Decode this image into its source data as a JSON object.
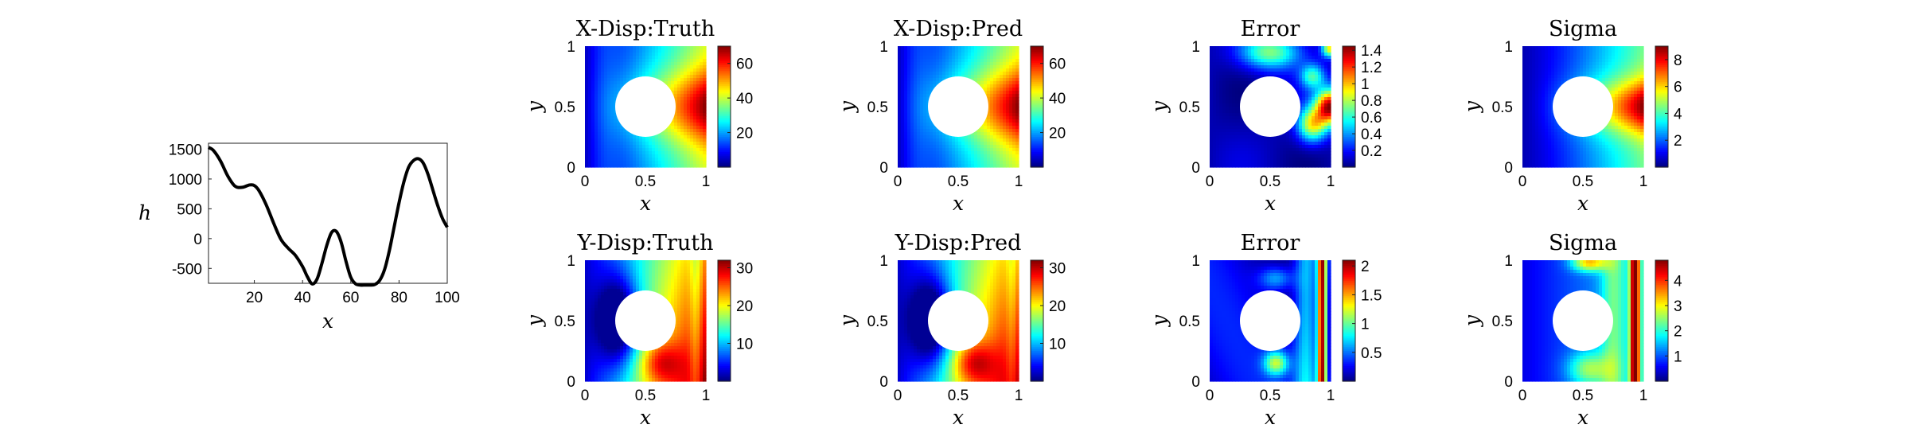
{
  "chart_data": [
    {
      "type": "line",
      "xlabel": "x",
      "ylabel": "h",
      "xlim": [
        1,
        100
      ],
      "ylim": [
        -750,
        1600
      ],
      "xticks": [
        "20",
        "40",
        "60",
        "80",
        "100"
      ],
      "yticks": [
        "-500",
        "0",
        "500",
        "1000",
        "1500"
      ],
      "series": [
        {
          "x": [
            1,
            3,
            6,
            9,
            12,
            15,
            18,
            20,
            22,
            25,
            28,
            31,
            34,
            37,
            40,
            42,
            44,
            46,
            48,
            50,
            52,
            54,
            56,
            58,
            60,
            62,
            64,
            66,
            68,
            70,
            72,
            74,
            76,
            78,
            80,
            82,
            84,
            86,
            88,
            90,
            92,
            94,
            96,
            98,
            100
          ],
          "y": [
            1530,
            1480,
            1300,
            1050,
            880,
            860,
            900,
            890,
            800,
            560,
            260,
            -10,
            -160,
            -280,
            -470,
            -640,
            -760,
            -680,
            -420,
            -120,
            100,
            120,
            -60,
            -380,
            -650,
            -760,
            -780,
            -780,
            -780,
            -770,
            -700,
            -520,
            -200,
            200,
            600,
            950,
            1200,
            1310,
            1340,
            1270,
            1080,
            820,
            560,
            340,
            190
          ]
        }
      ]
    },
    {
      "type": "heatmap",
      "title": "X-Disp:Truth",
      "xlabel": "x",
      "ylabel": "y",
      "xlim": [
        0,
        1
      ],
      "ylim": [
        0,
        1
      ],
      "xticks": [
        "0",
        "0.5",
        "1"
      ],
      "yticks": [
        "0",
        "0.5",
        "1"
      ],
      "colorbar": {
        "min": 0,
        "max": 70,
        "ticks": [
          "20",
          "40",
          "60"
        ]
      },
      "hole": {
        "cx": 0.5,
        "cy": 0.5,
        "r": 0.25
      }
    },
    {
      "type": "heatmap",
      "title": "X-Disp:Pred",
      "xlabel": "x",
      "ylabel": "y",
      "xlim": [
        0,
        1
      ],
      "ylim": [
        0,
        1
      ],
      "xticks": [
        "0",
        "0.5",
        "1"
      ],
      "yticks": [
        "0",
        "0.5",
        "1"
      ],
      "colorbar": {
        "min": 0,
        "max": 70,
        "ticks": [
          "20",
          "40",
          "60"
        ]
      },
      "hole": {
        "cx": 0.5,
        "cy": 0.5,
        "r": 0.25
      }
    },
    {
      "type": "heatmap",
      "title": "Error",
      "xlabel": "x",
      "ylabel": "y",
      "xlim": [
        0,
        1
      ],
      "ylim": [
        0,
        1
      ],
      "xticks": [
        "0",
        "0.5",
        "1"
      ],
      "yticks": [
        "0",
        "0.5",
        "1"
      ],
      "colorbar": {
        "min": 0,
        "max": 1.45,
        "ticks": [
          "0.2",
          "0.4",
          "0.6",
          "0.8",
          "1",
          "1.2",
          "1.4"
        ]
      },
      "hole": {
        "cx": 0.5,
        "cy": 0.5,
        "r": 0.25
      }
    },
    {
      "type": "heatmap",
      "title": "Sigma",
      "xlabel": "x",
      "ylabel": "y",
      "xlim": [
        0,
        1
      ],
      "ylim": [
        0,
        1
      ],
      "xticks": [
        "0",
        "0.5",
        "1"
      ],
      "yticks": [
        "0",
        "0.5",
        "1"
      ],
      "colorbar": {
        "min": 0,
        "max": 9,
        "ticks": [
          "2",
          "4",
          "6",
          "8"
        ]
      },
      "hole": {
        "cx": 0.5,
        "cy": 0.5,
        "r": 0.25
      }
    },
    {
      "type": "heatmap",
      "title": "Y-Disp:Truth",
      "xlabel": "x",
      "ylabel": "y",
      "xlim": [
        0,
        1
      ],
      "ylim": [
        0,
        1
      ],
      "xticks": [
        "0",
        "0.5",
        "1"
      ],
      "yticks": [
        "0",
        "0.5",
        "1"
      ],
      "colorbar": {
        "min": 0,
        "max": 32,
        "ticks": [
          "10",
          "20",
          "30"
        ]
      },
      "hole": {
        "cx": 0.5,
        "cy": 0.5,
        "r": 0.25
      }
    },
    {
      "type": "heatmap",
      "title": "Y-Disp:Pred",
      "xlabel": "x",
      "ylabel": "y",
      "xlim": [
        0,
        1
      ],
      "ylim": [
        0,
        1
      ],
      "xticks": [
        "0",
        "0.5",
        "1"
      ],
      "yticks": [
        "0",
        "0.5",
        "1"
      ],
      "colorbar": {
        "min": 0,
        "max": 32,
        "ticks": [
          "10",
          "20",
          "30"
        ]
      },
      "hole": {
        "cx": 0.5,
        "cy": 0.5,
        "r": 0.25
      }
    },
    {
      "type": "heatmap",
      "title": "Error",
      "xlabel": "x",
      "ylabel": "y",
      "xlim": [
        0,
        1
      ],
      "ylim": [
        0,
        1
      ],
      "xticks": [
        "0",
        "0.5",
        "1"
      ],
      "yticks": [
        "0",
        "0.5",
        "1"
      ],
      "colorbar": {
        "min": 0,
        "max": 2.1,
        "ticks": [
          "0.5",
          "1",
          "1.5",
          "2"
        ]
      },
      "hole": {
        "cx": 0.5,
        "cy": 0.5,
        "r": 0.25
      }
    },
    {
      "type": "heatmap",
      "title": "Sigma",
      "xlabel": "x",
      "ylabel": "y",
      "xlim": [
        0,
        1
      ],
      "ylim": [
        0,
        1
      ],
      "xticks": [
        "0",
        "0.5",
        "1"
      ],
      "yticks": [
        "0",
        "0.5",
        "1"
      ],
      "colorbar": {
        "min": 0,
        "max": 4.8,
        "ticks": [
          "1",
          "2",
          "3",
          "4"
        ]
      },
      "hole": {
        "cx": 0.5,
        "cy": 0.5,
        "r": 0.25
      }
    }
  ]
}
